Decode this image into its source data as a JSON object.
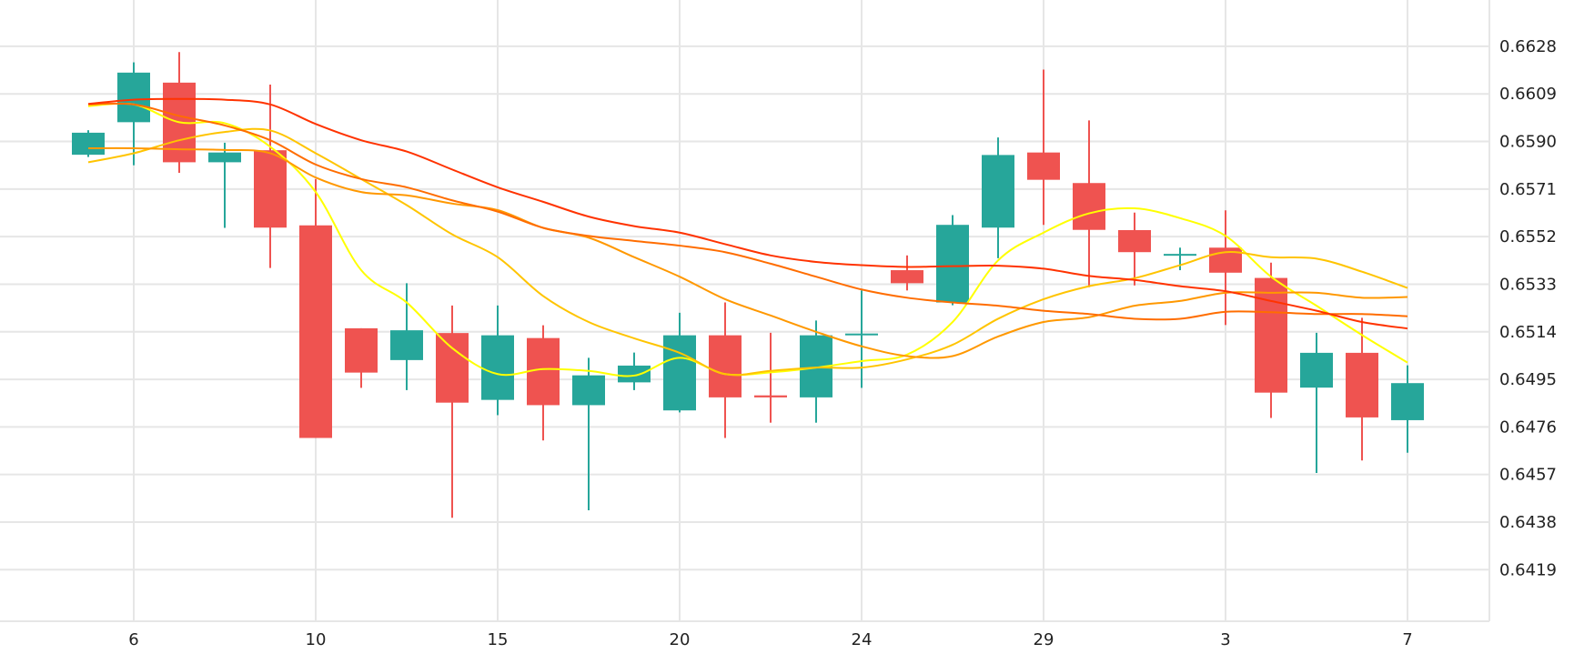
{
  "chart_data": {
    "type": "candlestick",
    "title": "",
    "xlabel": "",
    "ylabel": "",
    "ylim": [
      0.63984,
      0.66465
    ],
    "grid": true,
    "y_ticks": [
      "0.6628",
      "0.6609",
      "0.6590",
      "0.6571",
      "0.6552",
      "0.6533",
      "0.6514",
      "0.6495",
      "0.6476",
      "0.6457",
      "0.6438",
      "0.6419"
    ],
    "x_ticks": [
      {
        "index": 1,
        "label": "6"
      },
      {
        "index": 5,
        "label": "10"
      },
      {
        "index": 9,
        "label": "15"
      },
      {
        "index": 13,
        "label": "20"
      },
      {
        "index": 17,
        "label": "24"
      },
      {
        "index": 21,
        "label": "29"
      },
      {
        "index": 25,
        "label": "3"
      },
      {
        "index": 29,
        "label": "7"
      }
    ],
    "colors": {
      "up": "#26a69a",
      "down": "#ef5350",
      "grid": "#e6e6e6"
    },
    "candles": [
      {
        "o": 0.65847,
        "h": 0.65945,
        "l": 0.65838,
        "c": 0.65935
      },
      {
        "o": 0.65977,
        "h": 0.66216,
        "l": 0.65805,
        "c": 0.66175
      },
      {
        "o": 0.66135,
        "h": 0.66257,
        "l": 0.65775,
        "c": 0.65817
      },
      {
        "o": 0.65817,
        "h": 0.65895,
        "l": 0.65555,
        "c": 0.65856
      },
      {
        "o": 0.65865,
        "h": 0.66127,
        "l": 0.65395,
        "c": 0.65556
      },
      {
        "o": 0.65565,
        "h": 0.6575,
        "l": 0.64716,
        "c": 0.64716
      },
      {
        "o": 0.65154,
        "h": 0.65154,
        "l": 0.64916,
        "c": 0.64977
      },
      {
        "o": 0.65027,
        "h": 0.65334,
        "l": 0.64907,
        "c": 0.65146
      },
      {
        "o": 0.65135,
        "h": 0.65245,
        "l": 0.64397,
        "c": 0.64857
      },
      {
        "o": 0.64868,
        "h": 0.65245,
        "l": 0.64807,
        "c": 0.65126
      },
      {
        "o": 0.65115,
        "h": 0.65166,
        "l": 0.64706,
        "c": 0.64847
      },
      {
        "o": 0.64847,
        "h": 0.65036,
        "l": 0.64427,
        "c": 0.64966
      },
      {
        "o": 0.64938,
        "h": 0.65057,
        "l": 0.64907,
        "c": 0.65005
      },
      {
        "o": 0.64826,
        "h": 0.65216,
        "l": 0.64818,
        "c": 0.65126
      },
      {
        "o": 0.65126,
        "h": 0.65257,
        "l": 0.64716,
        "c": 0.64878
      },
      {
        "o": 0.64886,
        "h": 0.65136,
        "l": 0.64777,
        "c": 0.64878
      },
      {
        "o": 0.64878,
        "h": 0.65185,
        "l": 0.64777,
        "c": 0.65126
      },
      {
        "o": 0.6513,
        "h": 0.65305,
        "l": 0.64916,
        "c": 0.65133
      },
      {
        "o": 0.65386,
        "h": 0.65445,
        "l": 0.65305,
        "c": 0.65334
      },
      {
        "o": 0.65257,
        "h": 0.65606,
        "l": 0.65246,
        "c": 0.65567
      },
      {
        "o": 0.65556,
        "h": 0.65916,
        "l": 0.65434,
        "c": 0.65846
      },
      {
        "o": 0.65856,
        "h": 0.66187,
        "l": 0.65567,
        "c": 0.65747
      },
      {
        "o": 0.65734,
        "h": 0.65984,
        "l": 0.65318,
        "c": 0.65547
      },
      {
        "o": 0.65546,
        "h": 0.65616,
        "l": 0.65325,
        "c": 0.65458
      },
      {
        "o": 0.65449,
        "h": 0.65476,
        "l": 0.65386,
        "c": 0.65451
      },
      {
        "o": 0.65476,
        "h": 0.65625,
        "l": 0.65167,
        "c": 0.65376
      },
      {
        "o": 0.65355,
        "h": 0.65416,
        "l": 0.64796,
        "c": 0.64897
      },
      {
        "o": 0.64917,
        "h": 0.65136,
        "l": 0.64576,
        "c": 0.65056
      },
      {
        "o": 0.65056,
        "h": 0.65196,
        "l": 0.64626,
        "c": 0.64798
      },
      {
        "o": 0.64787,
        "h": 0.65006,
        "l": 0.64657,
        "c": 0.64935
      }
    ],
    "series": [
      {
        "name": "ma-yellow",
        "color": "#ffff00",
        "values": [
          0.66041,
          0.66048,
          0.65977,
          0.65973,
          0.65879,
          0.65698,
          0.65386,
          0.65257,
          0.65075,
          0.64971,
          0.64991,
          0.64984,
          0.64965,
          0.65036,
          0.64971,
          0.64978,
          0.64997,
          0.65023,
          0.65049,
          0.65179,
          0.65425,
          0.65536,
          0.65613,
          0.65633,
          0.65594,
          0.65523,
          0.6536,
          0.65244,
          0.65127,
          0.65017
        ]
      },
      {
        "name": "ma-gold",
        "color": "#ffc400",
        "values": [
          0.65817,
          0.65853,
          0.65905,
          0.65938,
          0.65944,
          0.65853,
          0.6575,
          0.65646,
          0.65529,
          0.65438,
          0.65283,
          0.65179,
          0.65114,
          0.65056,
          0.64971,
          0.64984,
          0.64997,
          0.64997,
          0.6503,
          0.65088,
          0.65192,
          0.6527,
          0.65322,
          0.65354,
          0.65406,
          0.65458,
          0.65438,
          0.65432,
          0.6538,
          0.65315
        ]
      },
      {
        "name": "ma-orange",
        "color": "#ff9800",
        "values": [
          0.65873,
          0.65873,
          0.65869,
          0.65866,
          0.65853,
          0.65756,
          0.65698,
          0.65685,
          0.65652,
          0.65626,
          0.65555,
          0.65516,
          0.65438,
          0.6536,
          0.6527,
          0.65205,
          0.6514,
          0.65082,
          0.65043,
          0.65043,
          0.65121,
          0.65179,
          0.65198,
          0.65244,
          0.65263,
          0.65296,
          0.65296,
          0.65296,
          0.65276,
          0.65279
        ]
      },
      {
        "name": "ma-dark-orange",
        "color": "#ff6d00",
        "values": [
          0.66048,
          0.66048,
          0.66002,
          0.65964,
          0.65905,
          0.65808,
          0.6575,
          0.65717,
          0.65665,
          0.6562,
          0.65555,
          0.65523,
          0.65503,
          0.65484,
          0.65458,
          0.65412,
          0.6536,
          0.65309,
          0.65276,
          0.65257,
          0.65244,
          0.65224,
          0.65211,
          0.65192,
          0.65192,
          0.6522,
          0.65218,
          0.65211,
          0.65211,
          0.65202
        ]
      },
      {
        "name": "ma-red",
        "color": "#ff3300",
        "values": [
          0.6605,
          0.66067,
          0.6607,
          0.66067,
          0.66048,
          0.6597,
          0.65905,
          0.6586,
          0.65788,
          0.65717,
          0.65659,
          0.656,
          0.65562,
          0.65536,
          0.6549,
          0.65445,
          0.65419,
          0.65406,
          0.65399,
          0.65402,
          0.65404,
          0.65392,
          0.65363,
          0.65347,
          0.65322,
          0.65302,
          0.65263,
          0.65224,
          0.65179,
          0.65153
        ]
      }
    ]
  }
}
